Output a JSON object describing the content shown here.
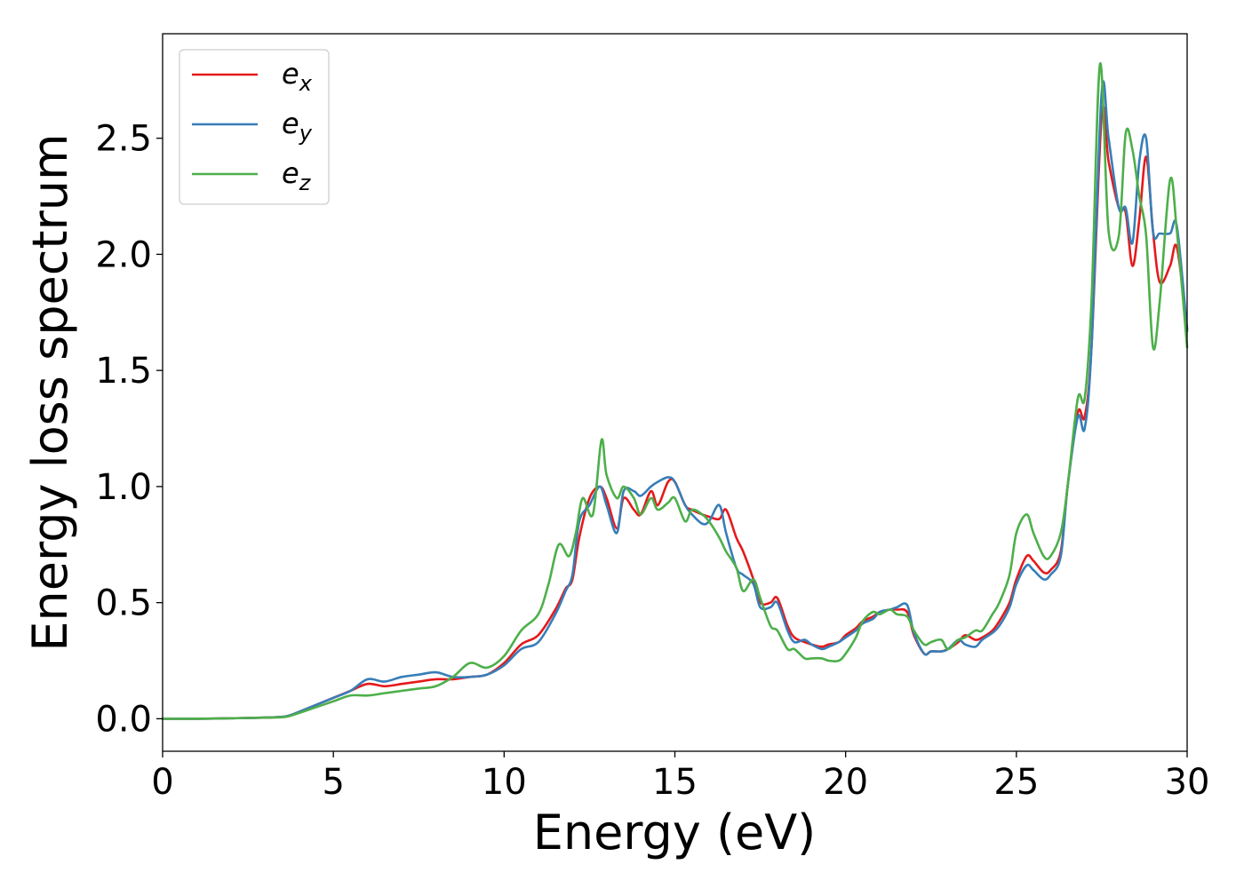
{
  "chart_data": {
    "type": "line",
    "xlabel": "Energy (eV)",
    "ylabel": "Energy loss spectrum",
    "xlim": [
      0,
      30
    ],
    "ylim": [
      -0.14,
      2.95
    ],
    "xticks": [
      0,
      5,
      10,
      15,
      20,
      25,
      30
    ],
    "xtick_labels": [
      "0",
      "5",
      "10",
      "15",
      "20",
      "25",
      "30"
    ],
    "yticks": [
      0.0,
      0.5,
      1.0,
      1.5,
      2.0,
      2.5
    ],
    "ytick_labels": [
      "0.0",
      "0.5",
      "1.0",
      "1.5",
      "2.0",
      "2.5"
    ],
    "grid": false,
    "legend_position": "top-left",
    "series": [
      {
        "name": "ex",
        "label_base": "e",
        "label_sub": "x",
        "color": "#e41a1c",
        "x": [
          0,
          1,
          2,
          3,
          3.6,
          4,
          4.5,
          5,
          5.5,
          6,
          6.5,
          7,
          7.5,
          8,
          8.5,
          9,
          9.5,
          10,
          10.5,
          11,
          11.5,
          11.8,
          12,
          12.2,
          12.5,
          12.8,
          13,
          13.3,
          13.5,
          13.8,
          14,
          14.3,
          14.5,
          14.8,
          15,
          15.3,
          15.5,
          15.8,
          16,
          16.3,
          16.5,
          16.8,
          17,
          17.3,
          17.5,
          17.8,
          18,
          18.3,
          18.5,
          18.8,
          19,
          19.3,
          19.5,
          19.8,
          20,
          20.3,
          20.5,
          20.8,
          21,
          21.3,
          21.5,
          21.8,
          22,
          22.3,
          22.5,
          22.8,
          23,
          23.3,
          23.5,
          23.8,
          24,
          24.3,
          24.5,
          24.8,
          25,
          25.3,
          25.5,
          25.8,
          26,
          26.3,
          26.5,
          26.8,
          27,
          27.2,
          27.5,
          27.7,
          28,
          28.2,
          28.4,
          28.6,
          28.8,
          29,
          29.2,
          29.5,
          29.7,
          30
        ],
        "y": [
          0,
          0,
          0.002,
          0.005,
          0.01,
          0.03,
          0.06,
          0.09,
          0.12,
          0.15,
          0.14,
          0.15,
          0.16,
          0.17,
          0.17,
          0.18,
          0.19,
          0.24,
          0.32,
          0.36,
          0.47,
          0.56,
          0.6,
          0.78,
          0.95,
          1.0,
          0.95,
          0.82,
          0.95,
          0.9,
          0.88,
          0.98,
          0.92,
          1.02,
          1.02,
          0.92,
          0.9,
          0.88,
          0.87,
          0.86,
          0.9,
          0.78,
          0.72,
          0.6,
          0.5,
          0.5,
          0.52,
          0.4,
          0.35,
          0.33,
          0.32,
          0.31,
          0.32,
          0.33,
          0.36,
          0.39,
          0.42,
          0.44,
          0.46,
          0.47,
          0.47,
          0.46,
          0.36,
          0.28,
          0.29,
          0.29,
          0.3,
          0.33,
          0.36,
          0.34,
          0.35,
          0.38,
          0.42,
          0.5,
          0.6,
          0.7,
          0.68,
          0.63,
          0.64,
          0.72,
          1.0,
          1.32,
          1.3,
          1.6,
          2.6,
          2.4,
          2.2,
          2.18,
          1.95,
          2.15,
          2.42,
          2.1,
          1.88,
          1.95,
          2.03,
          1.68
        ],
        "interpolation": "catmull-rom"
      },
      {
        "name": "ey",
        "label_base": "e",
        "label_sub": "y",
        "color": "#377eb8",
        "x": [
          0,
          1,
          2,
          3,
          3.6,
          4,
          4.5,
          5,
          5.5,
          6,
          6.5,
          7,
          7.5,
          8,
          8.5,
          9,
          9.5,
          10,
          10.5,
          11,
          11.5,
          11.8,
          12,
          12.2,
          12.5,
          12.8,
          13,
          13.3,
          13.5,
          13.8,
          14,
          14.3,
          14.5,
          14.8,
          15,
          15.3,
          15.5,
          15.8,
          16,
          16.3,
          16.5,
          16.8,
          17,
          17.3,
          17.5,
          17.8,
          18,
          18.3,
          18.5,
          18.8,
          19,
          19.3,
          19.5,
          19.8,
          20,
          20.3,
          20.5,
          20.8,
          21,
          21.3,
          21.5,
          21.8,
          22,
          22.3,
          22.5,
          22.8,
          23,
          23.3,
          23.5,
          23.8,
          24,
          24.3,
          24.5,
          24.8,
          25,
          25.3,
          25.5,
          25.8,
          26,
          26.3,
          26.5,
          26.8,
          27,
          27.2,
          27.5,
          27.7,
          28,
          28.2,
          28.4,
          28.6,
          28.8,
          29,
          29.2,
          29.5,
          29.7,
          30
        ],
        "y": [
          0,
          0,
          0.002,
          0.005,
          0.01,
          0.03,
          0.06,
          0.09,
          0.12,
          0.17,
          0.16,
          0.18,
          0.19,
          0.2,
          0.18,
          0.18,
          0.19,
          0.23,
          0.3,
          0.33,
          0.45,
          0.55,
          0.62,
          0.85,
          0.92,
          1.0,
          0.92,
          0.8,
          0.98,
          0.98,
          0.96,
          1.0,
          1.02,
          1.04,
          1.02,
          0.92,
          0.88,
          0.84,
          0.85,
          0.92,
          0.8,
          0.65,
          0.62,
          0.58,
          0.48,
          0.48,
          0.5,
          0.38,
          0.33,
          0.34,
          0.32,
          0.3,
          0.31,
          0.33,
          0.35,
          0.38,
          0.41,
          0.43,
          0.46,
          0.47,
          0.48,
          0.49,
          0.37,
          0.28,
          0.29,
          0.29,
          0.3,
          0.34,
          0.32,
          0.31,
          0.34,
          0.37,
          0.4,
          0.48,
          0.58,
          0.66,
          0.64,
          0.6,
          0.62,
          0.7,
          1.0,
          1.3,
          1.25,
          1.6,
          2.7,
          2.5,
          2.2,
          2.2,
          2.05,
          2.4,
          2.5,
          2.1,
          2.09,
          2.09,
          2.12,
          1.67
        ],
        "interpolation": "catmull-rom"
      },
      {
        "name": "ez",
        "label_base": "e",
        "label_sub": "z",
        "color": "#4daf4a",
        "x": [
          0,
          1,
          2,
          3,
          3.6,
          4,
          4.5,
          5,
          5.5,
          6,
          6.5,
          7,
          7.5,
          8,
          8.5,
          9,
          9.5,
          10,
          10.5,
          11,
          11.3,
          11.6,
          11.9,
          12.1,
          12.3,
          12.6,
          12.85,
          13,
          13.3,
          13.5,
          13.8,
          14,
          14.3,
          14.5,
          14.8,
          15,
          15.3,
          15.5,
          15.8,
          16,
          16.3,
          16.5,
          16.8,
          17,
          17.3,
          17.5,
          17.8,
          18,
          18.3,
          18.5,
          18.8,
          19,
          19.3,
          19.5,
          19.8,
          20,
          20.3,
          20.5,
          20.8,
          21,
          21.3,
          21.5,
          21.8,
          22,
          22.3,
          22.5,
          22.8,
          23,
          23.3,
          23.5,
          23.8,
          24,
          24.3,
          24.5,
          24.8,
          25,
          25.3,
          25.5,
          25.8,
          26,
          26.3,
          26.5,
          26.8,
          27,
          27.2,
          27.45,
          27.7,
          28,
          28.2,
          28.4,
          28.6,
          28.8,
          29,
          29.2,
          29.5,
          29.7,
          30
        ],
        "y": [
          0,
          0,
          0.002,
          0.005,
          0.008,
          0.025,
          0.05,
          0.075,
          0.1,
          0.1,
          0.11,
          0.12,
          0.13,
          0.14,
          0.18,
          0.24,
          0.22,
          0.27,
          0.38,
          0.45,
          0.58,
          0.75,
          0.7,
          0.8,
          0.95,
          0.88,
          1.2,
          1.05,
          0.95,
          1.0,
          0.95,
          0.88,
          0.95,
          0.9,
          0.93,
          0.95,
          0.85,
          0.9,
          0.88,
          0.85,
          0.78,
          0.72,
          0.65,
          0.55,
          0.6,
          0.52,
          0.4,
          0.38,
          0.3,
          0.3,
          0.26,
          0.26,
          0.26,
          0.25,
          0.25,
          0.28,
          0.35,
          0.42,
          0.46,
          0.45,
          0.47,
          0.45,
          0.44,
          0.38,
          0.32,
          0.33,
          0.34,
          0.3,
          0.34,
          0.35,
          0.38,
          0.38,
          0.45,
          0.5,
          0.62,
          0.8,
          0.88,
          0.8,
          0.7,
          0.7,
          0.8,
          1.0,
          1.38,
          1.38,
          1.8,
          2.82,
          2.1,
          2.08,
          2.52,
          2.45,
          2.25,
          2.08,
          1.6,
          1.8,
          2.32,
          2.1,
          1.6
        ],
        "interpolation": "catmull-rom"
      }
    ]
  }
}
